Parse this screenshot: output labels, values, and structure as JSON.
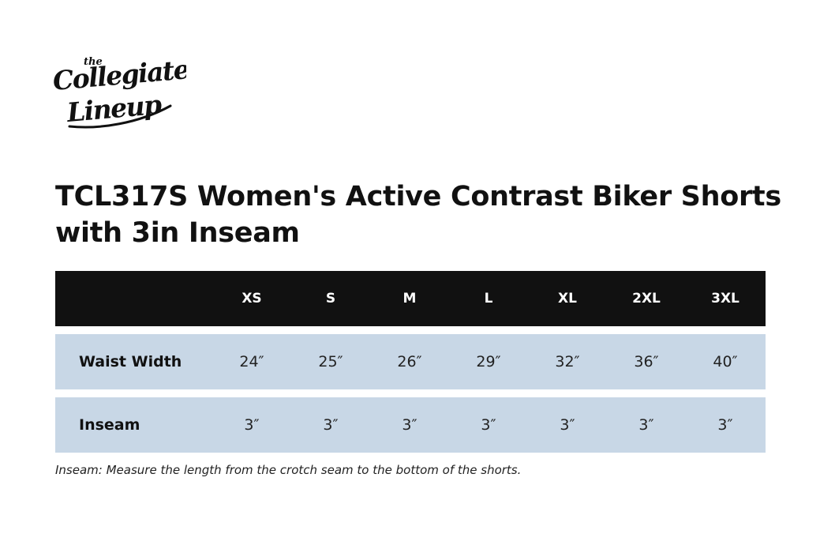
{
  "brand": {
    "logo_text_small": "the",
    "logo_text_line1": "Collegiate",
    "logo_text_line2": "Lineup"
  },
  "title": "TCL317S Women's Active Contrast Biker Shorts with 3in Inseam",
  "table": {
    "header_label": "",
    "sizes": [
      "XS",
      "S",
      "M",
      "L",
      "XL",
      "2XL",
      "3XL"
    ],
    "rows": [
      {
        "label": "Waist Width",
        "values": [
          "24″",
          "25″",
          "26″",
          "29″",
          "32″",
          "36″",
          "40″"
        ]
      },
      {
        "label": "Inseam",
        "values": [
          "3″",
          "3″",
          "3″",
          "3″",
          "3″",
          "3″",
          "3″"
        ]
      }
    ],
    "colors": {
      "header_bg": "#111111",
      "row_bg": "#c8d7e6"
    }
  },
  "note": "Inseam: Measure the length from the crotch seam to the bottom of the shorts."
}
